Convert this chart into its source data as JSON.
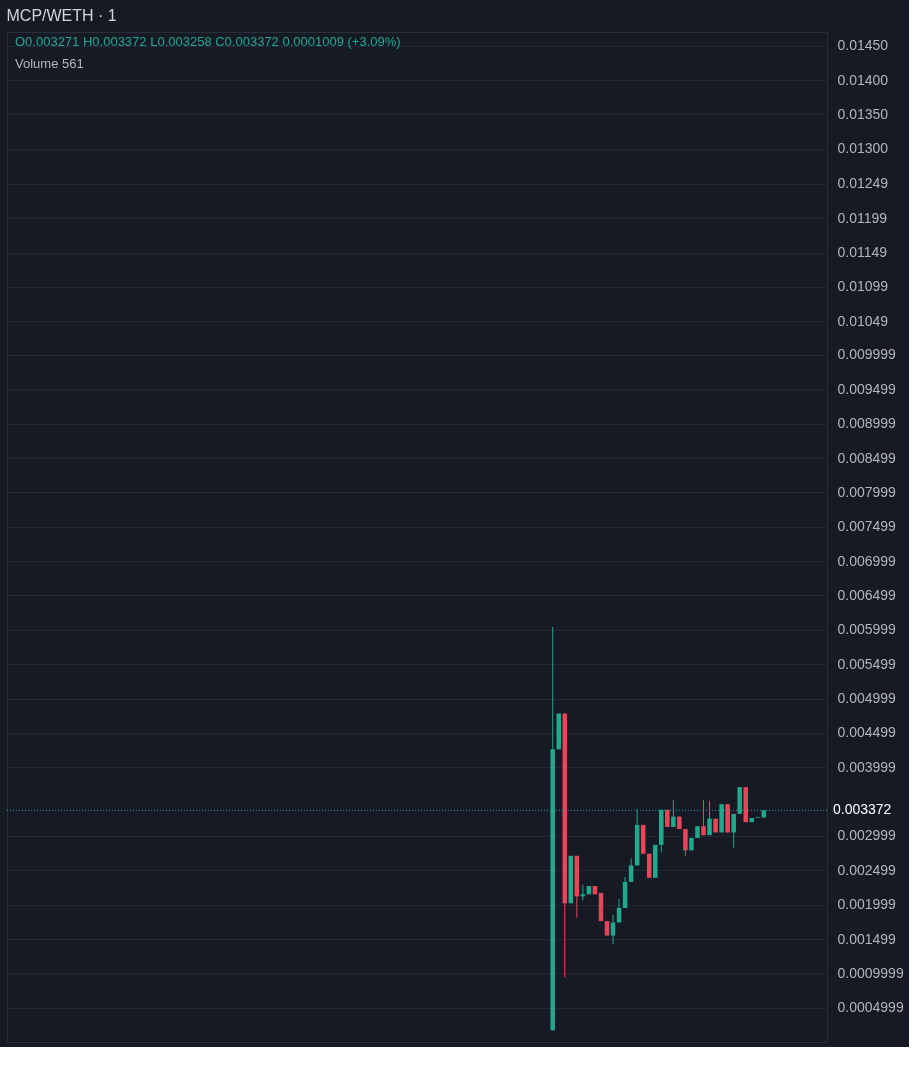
{
  "chart_data": {
    "type": "candlestick",
    "title": "MCP/WETH · 1",
    "annotations": [
      "O0.003271 H0.003372 L0.003258 C0.003372 0.0001009 (+3.09%)",
      "Volume 561"
    ],
    "categories": [
      null,
      null,
      null,
      null,
      null,
      null,
      null,
      null,
      null,
      null,
      null,
      null,
      null,
      null,
      null,
      null,
      null,
      null,
      null,
      null,
      null,
      null,
      null,
      null,
      null,
      null,
      null,
      null,
      null,
      null,
      null,
      null,
      null,
      null,
      null,
      null,
      null,
      null,
      null,
      null,
      null,
      null,
      null,
      null,
      null,
      null,
      null,
      null,
      null,
      null,
      null,
      null,
      null,
      null,
      null,
      null,
      null,
      null,
      null,
      null,
      null,
      null,
      null,
      null,
      null,
      null,
      null,
      null,
      null,
      null,
      null,
      null,
      null,
      null,
      null,
      null,
      null,
      null,
      null,
      null,
      null,
      null,
      null,
      null,
      null,
      null,
      null,
      null,
      null,
      null,
      null,
      null,
      null,
      null,
      null,
      null,
      null,
      null,
      null,
      null,
      null,
      null,
      null,
      null,
      null,
      null,
      null,
      null,
      null,
      null,
      null,
      null,
      null,
      null,
      null,
      null,
      null,
      null,
      null,
      null,
      null,
      null,
      null,
      null,
      null,
      null,
      null,
      null,
      null,
      null,
      null,
      null,
      null,
      null,
      null,
      null
    ],
    "ohlc": [
      null,
      null,
      null,
      null,
      null,
      null,
      null,
      null,
      null,
      null,
      null,
      null,
      null,
      null,
      null,
      null,
      null,
      null,
      null,
      null,
      null,
      null,
      null,
      null,
      null,
      null,
      null,
      null,
      null,
      null,
      null,
      null,
      null,
      null,
      null,
      null,
      null,
      null,
      null,
      null,
      null,
      null,
      null,
      null,
      null,
      null,
      null,
      null,
      null,
      null,
      null,
      null,
      null,
      null,
      null,
      null,
      null,
      null,
      null,
      null,
      null,
      null,
      null,
      null,
      null,
      null,
      null,
      null,
      null,
      null,
      null,
      null,
      null,
      null,
      null,
      null,
      null,
      null,
      null,
      null,
      null,
      null,
      null,
      null,
      null,
      null,
      null,
      null,
      null,
      null,
      [
        0.00017,
        0.00604,
        0.00017,
        0.00426
      ],
      [
        0.00426,
        0.00478,
        0.00426,
        0.00478
      ],
      [
        0.00478,
        0.00478,
        0.00094,
        0.00202
      ],
      [
        0.00202,
        0.00271,
        0.00202,
        0.00271
      ],
      [
        0.00271,
        0.00271,
        0.00181,
        0.00212
      ],
      [
        0.00212,
        0.00229,
        0.00206,
        0.00215
      ],
      [
        0.00215,
        0.00227,
        0.00215,
        0.00227
      ],
      [
        0.00227,
        0.00227,
        0.00215,
        0.00215
      ],
      [
        0.00217,
        0.00217,
        0.00176,
        0.00176
      ],
      [
        0.00176,
        0.00176,
        0.00155,
        0.00155
      ],
      [
        0.00155,
        0.00185,
        0.00142,
        0.00174
      ],
      [
        0.00174,
        0.00208,
        0.00174,
        0.00195
      ],
      [
        0.00195,
        0.0024,
        0.00195,
        0.00233
      ],
      [
        0.00233,
        0.00267,
        0.00233,
        0.00257
      ],
      [
        0.00257,
        0.00339,
        0.00257,
        0.00316
      ],
      [
        0.00316,
        0.00316,
        0.00274,
        0.00274
      ],
      [
        0.00274,
        0.00274,
        0.00239,
        0.00239
      ],
      [
        0.00239,
        0.00287,
        0.00239,
        0.00287
      ],
      [
        0.00287,
        0.00338,
        0.00276,
        0.00338
      ],
      [
        0.00338,
        0.00338,
        0.00313,
        0.00313
      ],
      [
        0.00313,
        0.00352,
        0.00313,
        0.00328
      ],
      [
        0.00328,
        0.00328,
        0.0031,
        0.0031
      ],
      [
        0.0031,
        0.0031,
        0.00271,
        0.00279
      ],
      [
        0.00279,
        0.00297,
        0.00279,
        0.00297
      ],
      [
        0.00297,
        0.00314,
        0.00297,
        0.00314
      ],
      [
        0.00314,
        0.00352,
        0.00301,
        0.00301
      ],
      [
        0.00301,
        0.00351,
        0.00301,
        0.00325
      ],
      [
        0.00325,
        0.00325,
        0.00305,
        0.00305
      ],
      [
        0.00305,
        0.00346,
        0.00305,
        0.00346
      ],
      [
        0.00346,
        0.00346,
        0.00305,
        0.00305
      ],
      [
        0.00305,
        0.00332,
        0.00283,
        0.00332
      ],
      [
        0.00332,
        0.00371,
        0.00332,
        0.00371
      ],
      [
        0.00371,
        0.00371,
        0.0032,
        0.0032
      ],
      [
        0.0032,
        0.00326,
        0.0032,
        0.00326
      ],
      [
        0.00326,
        0.00327,
        0.00326,
        0.00327
      ],
      [
        0.003271,
        0.003372,
        0.003258,
        0.003372
      ],
      null,
      null,
      null,
      null,
      null,
      null,
      null,
      null,
      null,
      null
    ],
    "ylim": [
      0,
      0.0147
    ],
    "yticks": [
      {
        "value": 0.0145,
        "label": "0.01450"
      },
      {
        "value": 0.014,
        "label": "0.01400"
      },
      {
        "value": 0.0135,
        "label": "0.01350"
      },
      {
        "value": 0.013,
        "label": "0.01300"
      },
      0.01249,
      0.01199,
      0.01149,
      0.01099,
      0.01049,
      0.009999,
      0.009499,
      0.008999,
      0.008499,
      0.007999,
      0.007499,
      0.006999,
      0.006499,
      0.005999,
      0.005499,
      0.004999,
      0.004499,
      0.003999,
      0.002999,
      0.002499,
      0.001999,
      0.001499,
      0.0009999,
      0.0004999
    ],
    "ref_lines": [
      {
        "axis": "y",
        "value": 0.003372,
        "label": "0.003372",
        "color": "#26a69a",
        "line_style": "dotted"
      }
    ],
    "grid": "y",
    "tick_labels": "y",
    "legend": false
  }
}
